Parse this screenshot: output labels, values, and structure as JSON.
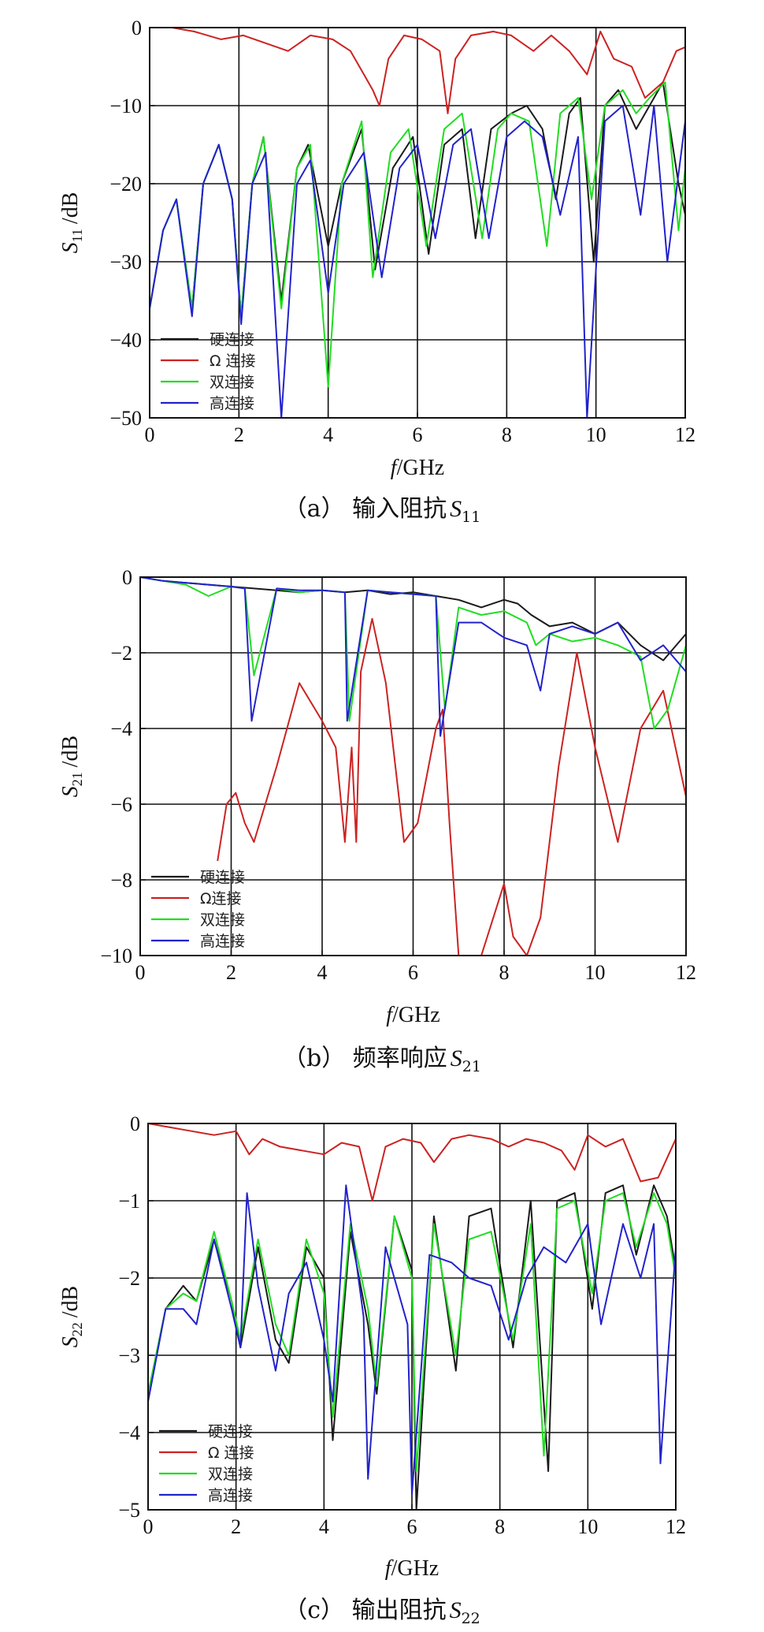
{
  "colors": {
    "hard": "#1a1a1a",
    "omega": "#cc2222",
    "double": "#22dd22",
    "high": "#2222cc"
  },
  "chart_data": [
    {
      "type": "line",
      "caption": "（a） 输入阻抗 S11",
      "caption_parts": {
        "prefix": "（a）",
        "text": "输入阻抗",
        "sym": "S",
        "sub": "11"
      },
      "xlabel": "f/GHz",
      "xlabel_parts": {
        "sym": "f",
        "rest": "/GHz"
      },
      "ylabel": "S11 /dB",
      "ylabel_parts": {
        "sym": "S",
        "sub": "11",
        "rest": "/dB"
      },
      "xlim": [
        0,
        12
      ],
      "ylim": [
        -50,
        0
      ],
      "xticks": [
        0,
        2,
        4,
        6,
        8,
        10,
        12
      ],
      "yticks": [
        0,
        -10,
        -20,
        -30,
        -40,
        -50
      ],
      "legend_position": "bottom-left",
      "series": [
        {
          "name": "硬连接",
          "color_key": "hard",
          "x": [
            0,
            0.3,
            0.6,
            0.95,
            1.2,
            1.55,
            1.85,
            2.05,
            2.3,
            2.55,
            2.95,
            3.3,
            3.55,
            4.0,
            4.3,
            4.75,
            5.05,
            5.45,
            5.9,
            6.25,
            6.6,
            7.0,
            7.3,
            7.65,
            8.1,
            8.45,
            8.8,
            9.1,
            9.4,
            9.65,
            9.95,
            10.2,
            10.5,
            10.9,
            11.2,
            11.5,
            11.85,
            12
          ],
          "y": [
            -36,
            -26,
            -22,
            -36,
            -20,
            -15,
            -22,
            -37,
            -20,
            -14,
            -35,
            -18,
            -15,
            -28,
            -20,
            -13,
            -31,
            -18,
            -14,
            -29,
            -15,
            -13,
            -27,
            -13,
            -11,
            -10,
            -13,
            -22,
            -11,
            -9,
            -30,
            -10,
            -8,
            -13,
            -10,
            -7,
            -20,
            -24
          ]
        },
        {
          "name": "Ω 连接",
          "color_key": "omega",
          "x": [
            0,
            0.5,
            1.0,
            1.6,
            2.1,
            2.6,
            3.1,
            3.6,
            4.1,
            4.5,
            4.8,
            5.0,
            5.15,
            5.35,
            5.7,
            6.1,
            6.5,
            6.68,
            6.85,
            7.2,
            7.7,
            8.1,
            8.6,
            9.0,
            9.4,
            9.8,
            10.1,
            10.4,
            10.8,
            11.1,
            11.5,
            11.8,
            12
          ],
          "y": [
            0,
            0,
            -0.5,
            -1.5,
            -1,
            -2,
            -3,
            -1,
            -1.5,
            -3,
            -6,
            -8,
            -10,
            -4,
            -1,
            -1.5,
            -3,
            -11,
            -4,
            -1,
            -0.5,
            -1,
            -3,
            -1,
            -3,
            -6,
            -0.5,
            -4,
            -5,
            -9,
            -7,
            -3,
            -2.5
          ]
        },
        {
          "name": "双连接",
          "color_key": "double",
          "x": [
            0,
            0.3,
            0.6,
            0.95,
            1.2,
            1.55,
            1.85,
            2.05,
            2.3,
            2.55,
            2.95,
            3.3,
            3.6,
            4.0,
            4.3,
            4.75,
            5.0,
            5.4,
            5.8,
            6.2,
            6.6,
            7.0,
            7.45,
            7.8,
            8.1,
            8.5,
            8.9,
            9.2,
            9.6,
            9.9,
            10.2,
            10.6,
            10.9,
            11.2,
            11.55,
            11.85,
            12
          ],
          "y": [
            -36,
            -26,
            -22,
            -36,
            -20,
            -15,
            -22,
            -37,
            -20,
            -14,
            -36,
            -18,
            -15,
            -46,
            -20,
            -12,
            -32,
            -16,
            -13,
            -28,
            -13,
            -11,
            -27,
            -13,
            -11,
            -12,
            -28,
            -11,
            -9,
            -22,
            -10,
            -8,
            -11,
            -9,
            -7,
            -26,
            -18
          ]
        },
        {
          "name": "高连接",
          "color_key": "high",
          "x": [
            0,
            0.3,
            0.6,
            0.95,
            1.2,
            1.55,
            1.85,
            2.05,
            2.3,
            2.6,
            2.95,
            3.3,
            3.6,
            4.0,
            4.35,
            4.8,
            5.2,
            5.6,
            6.0,
            6.4,
            6.8,
            7.2,
            7.6,
            8.0,
            8.4,
            8.8,
            9.2,
            9.6,
            9.8,
            10.2,
            10.6,
            11.0,
            11.3,
            11.6,
            12
          ],
          "y": [
            -36,
            -26,
            -22,
            -37,
            -20,
            -15,
            -22,
            -38,
            -20,
            -16,
            -50,
            -20,
            -17,
            -34,
            -20,
            -16,
            -32,
            -18,
            -15,
            -27,
            -15,
            -13,
            -27,
            -14,
            -12,
            -14,
            -24,
            -14,
            -50,
            -12,
            -10,
            -24,
            -10,
            -30,
            -12
          ]
        }
      ]
    },
    {
      "type": "line",
      "caption": "（b） 频率响应 S21",
      "caption_parts": {
        "prefix": "（b）",
        "text": "频率响应",
        "sym": "S",
        "sub": "21"
      },
      "xlabel": "f/GHz",
      "xlabel_parts": {
        "sym": "f",
        "rest": "/GHz"
      },
      "ylabel": "S21 /dB",
      "ylabel_parts": {
        "sym": "S",
        "sub": "21",
        "rest": "/dB"
      },
      "xlim": [
        0,
        12
      ],
      "ylim": [
        -10,
        0
      ],
      "xticks": [
        0,
        2,
        4,
        6,
        8,
        10,
        12
      ],
      "yticks": [
        0,
        -2,
        -4,
        -6,
        -8,
        -10
      ],
      "legend_position": "bottom-left",
      "series": [
        {
          "name": "硬连接",
          "color_key": "hard",
          "x": [
            0,
            0.5,
            1.0,
            1.5,
            2.0,
            2.5,
            3.0,
            3.5,
            4.0,
            4.5,
            5.0,
            5.5,
            6.0,
            6.5,
            7.0,
            7.5,
            8.0,
            8.3,
            8.6,
            9.0,
            9.5,
            10.0,
            10.5,
            11.0,
            11.5,
            12
          ],
          "y": [
            0,
            -0.1,
            -0.15,
            -0.2,
            -0.25,
            -0.3,
            -0.35,
            -0.4,
            -0.35,
            -0.4,
            -0.35,
            -0.45,
            -0.4,
            -0.5,
            -0.6,
            -0.8,
            -0.6,
            -0.7,
            -1.0,
            -1.3,
            -1.2,
            -1.5,
            -1.2,
            -1.8,
            -2.2,
            -1.5
          ]
        },
        {
          "name": "Ω连接",
          "color_key": "omega",
          "x": [
            1.7,
            1.9,
            2.1,
            2.3,
            2.5,
            3.0,
            3.5,
            4.0,
            4.3,
            4.5,
            4.65,
            4.75,
            4.85,
            5.1,
            5.4,
            5.8,
            6.1,
            6.5,
            6.65,
            6.8,
            7.0,
            7.5,
            8.0,
            8.2,
            8.5,
            8.8,
            9.2,
            9.6,
            10.0,
            10.5,
            11.0,
            11.5,
            12
          ],
          "y": [
            -7.5,
            -6,
            -5.7,
            -6.5,
            -7,
            -5,
            -2.8,
            -3.8,
            -4.5,
            -7,
            -4.5,
            -7,
            -2.5,
            -1.1,
            -2.8,
            -7,
            -6.5,
            -4,
            -3.5,
            -6.5,
            -10,
            -10,
            -8.1,
            -9.5,
            -10,
            -9,
            -5,
            -2,
            -4.5,
            -7,
            -4,
            -3,
            -5.8
          ]
        },
        {
          "name": "双连接",
          "color_key": "double",
          "x": [
            0,
            0.5,
            1.0,
            1.5,
            2.0,
            2.3,
            2.5,
            3.0,
            3.5,
            4.0,
            4.5,
            4.6,
            5.0,
            5.5,
            6.0,
            6.5,
            6.7,
            7.0,
            7.5,
            8.0,
            8.5,
            8.7,
            9.0,
            9.5,
            10.0,
            10.5,
            11.0,
            11.3,
            11.6,
            12
          ],
          "y": [
            0,
            -0.1,
            -0.2,
            -0.5,
            -0.25,
            -0.3,
            -2.6,
            -0.3,
            -0.4,
            -0.35,
            -0.4,
            -3.8,
            -0.35,
            -0.4,
            -0.45,
            -0.5,
            -3.5,
            -0.8,
            -1.0,
            -0.9,
            -1.2,
            -1.8,
            -1.5,
            -1.7,
            -1.6,
            -1.8,
            -2.1,
            -4.0,
            -3.5,
            -1.8
          ]
        },
        {
          "name": "高连接",
          "color_key": "high",
          "x": [
            0,
            0.5,
            1.0,
            1.5,
            2.0,
            2.3,
            2.45,
            3.0,
            3.5,
            4.0,
            4.5,
            4.55,
            5.0,
            5.5,
            6.0,
            6.5,
            6.6,
            7.0,
            7.5,
            8.0,
            8.5,
            8.8,
            9.0,
            9.5,
            10.0,
            10.5,
            11.0,
            11.5,
            12
          ],
          "y": [
            0,
            -0.1,
            -0.15,
            -0.2,
            -0.25,
            -0.3,
            -3.8,
            -0.3,
            -0.35,
            -0.35,
            -0.4,
            -3.8,
            -0.35,
            -0.4,
            -0.45,
            -0.5,
            -4.2,
            -1.2,
            -1.2,
            -1.6,
            -1.8,
            -3.0,
            -1.5,
            -1.3,
            -1.5,
            -1.2,
            -2.2,
            -1.8,
            -2.5
          ]
        }
      ]
    },
    {
      "type": "line",
      "caption": "（c） 输出阻抗 S22",
      "caption_parts": {
        "prefix": "（c）",
        "text": "输出阻抗",
        "sym": "S",
        "sub": "22"
      },
      "xlabel": "f/GHz",
      "xlabel_parts": {
        "sym": "f",
        "rest": "/GHz"
      },
      "ylabel": "S22 /dB",
      "ylabel_parts": {
        "sym": "S",
        "sub": "22",
        "rest": "/dB"
      },
      "xlim": [
        0,
        12
      ],
      "ylim": [
        -5,
        0
      ],
      "xticks": [
        0,
        2,
        4,
        6,
        8,
        10,
        12
      ],
      "yticks": [
        0,
        -1,
        -2,
        -3,
        -4,
        -5
      ],
      "legend_position": "bottom-left",
      "series": [
        {
          "name": "硬连接",
          "color_key": "hard",
          "x": [
            0,
            0.4,
            0.8,
            1.1,
            1.5,
            1.9,
            2.1,
            2.5,
            2.9,
            3.2,
            3.6,
            4.0,
            4.2,
            4.6,
            5.0,
            5.2,
            5.6,
            6.0,
            6.1,
            6.5,
            7.0,
            7.3,
            7.8,
            8.3,
            8.7,
            9.1,
            9.3,
            9.7,
            10.1,
            10.4,
            10.8,
            11.1,
            11.5,
            11.8,
            12
          ],
          "y": [
            -3.5,
            -2.4,
            -2.1,
            -2.3,
            -1.5,
            -2.3,
            -2.9,
            -1.6,
            -2.8,
            -3.1,
            -1.6,
            -2.0,
            -4.1,
            -1.4,
            -2.6,
            -3.5,
            -1.2,
            -1.9,
            -5.0,
            -1.2,
            -3.2,
            -1.2,
            -1.1,
            -2.9,
            -1.0,
            -4.5,
            -1.0,
            -0.9,
            -2.4,
            -0.9,
            -0.8,
            -1.7,
            -0.8,
            -1.2,
            -1.9
          ]
        },
        {
          "name": "Ω 连接",
          "color_key": "omega",
          "x": [
            0,
            0.5,
            1.0,
            1.5,
            2.0,
            2.3,
            2.6,
            3.0,
            3.5,
            4.0,
            4.4,
            4.8,
            5.1,
            5.4,
            5.8,
            6.2,
            6.5,
            6.9,
            7.3,
            7.8,
            8.2,
            8.6,
            9.0,
            9.4,
            9.7,
            10.0,
            10.4,
            10.8,
            11.2,
            11.6,
            12
          ],
          "y": [
            0,
            -0.05,
            -0.1,
            -0.15,
            -0.1,
            -0.4,
            -0.2,
            -0.3,
            -0.35,
            -0.4,
            -0.25,
            -0.3,
            -1.0,
            -0.3,
            -0.2,
            -0.25,
            -0.5,
            -0.2,
            -0.15,
            -0.2,
            -0.3,
            -0.2,
            -0.25,
            -0.35,
            -0.6,
            -0.15,
            -0.3,
            -0.2,
            -0.75,
            -0.7,
            -0.2
          ]
        },
        {
          "name": "双连接",
          "color_key": "double",
          "x": [
            0,
            0.4,
            0.8,
            1.1,
            1.5,
            1.9,
            2.1,
            2.5,
            2.9,
            3.2,
            3.6,
            4.0,
            4.2,
            4.6,
            5.0,
            5.2,
            5.6,
            6.0,
            6.1,
            6.5,
            7.0,
            7.3,
            7.8,
            8.3,
            8.7,
            9.0,
            9.3,
            9.7,
            10.1,
            10.4,
            10.8,
            11.1,
            11.5,
            11.8,
            12
          ],
          "y": [
            -3.5,
            -2.4,
            -2.2,
            -2.3,
            -1.4,
            -2.3,
            -2.8,
            -1.5,
            -2.6,
            -3.0,
            -1.5,
            -2.2,
            -3.8,
            -1.3,
            -2.4,
            -3.4,
            -1.2,
            -2.0,
            -4.5,
            -1.3,
            -3.0,
            -1.5,
            -1.4,
            -2.8,
            -1.3,
            -4.3,
            -1.1,
            -1.0,
            -2.2,
            -1.0,
            -0.9,
            -1.6,
            -0.9,
            -1.3,
            -2.0
          ]
        },
        {
          "name": "高连接",
          "color_key": "high",
          "x": [
            0,
            0.4,
            0.8,
            1.1,
            1.5,
            1.9,
            2.1,
            2.25,
            2.5,
            2.9,
            3.2,
            3.6,
            4.0,
            4.2,
            4.5,
            4.9,
            5.0,
            5.4,
            5.9,
            6.0,
            6.4,
            6.9,
            7.3,
            7.8,
            8.2,
            8.6,
            9.0,
            9.5,
            10.0,
            10.3,
            10.8,
            11.2,
            11.5,
            11.65,
            12
          ],
          "y": [
            -3.6,
            -2.4,
            -2.4,
            -2.6,
            -1.5,
            -2.4,
            -2.9,
            -0.9,
            -2.1,
            -3.2,
            -2.2,
            -1.8,
            -2.8,
            -3.6,
            -0.8,
            -2.5,
            -4.6,
            -1.6,
            -2.6,
            -4.8,
            -1.7,
            -1.8,
            -2.0,
            -2.1,
            -2.8,
            -2.0,
            -1.6,
            -1.8,
            -1.3,
            -2.6,
            -1.3,
            -2.0,
            -1.3,
            -4.4,
            -1.6
          ]
        }
      ]
    }
  ]
}
